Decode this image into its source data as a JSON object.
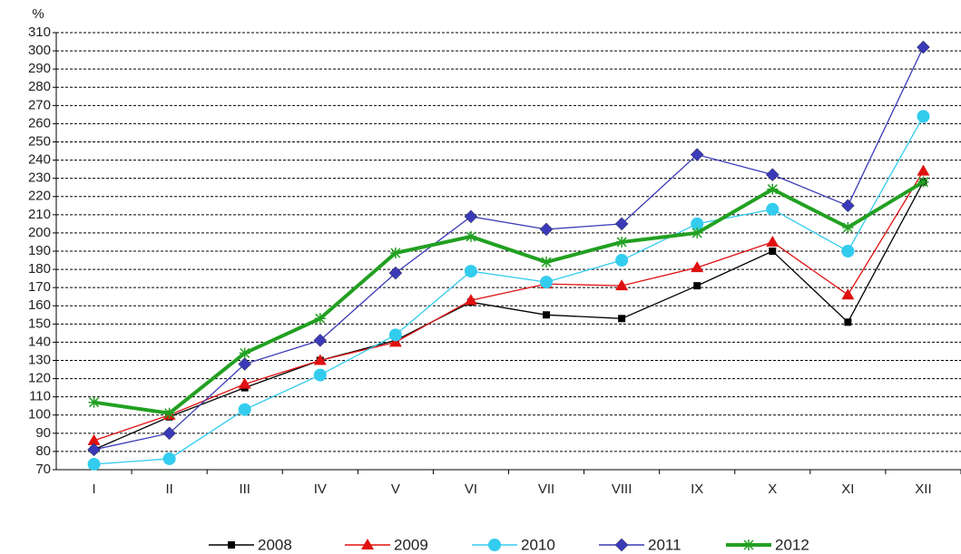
{
  "chart_data": {
    "type": "line",
    "y_label": "%",
    "categories": [
      "I",
      "II",
      "III",
      "IV",
      "V",
      "VI",
      "VII",
      "VIII",
      "IX",
      "X",
      "XI",
      "XII"
    ],
    "series": [
      {
        "name": "2008",
        "color": "#000000",
        "marker": "square",
        "values": [
          81,
          99,
          115,
          130,
          141,
          162,
          155,
          153,
          171,
          190,
          151,
          228
        ]
      },
      {
        "name": "2009",
        "color": "#e01010",
        "marker": "triangle",
        "values": [
          86,
          100,
          117,
          130,
          140,
          163,
          172,
          171,
          181,
          195,
          166,
          234
        ]
      },
      {
        "name": "2010",
        "color": "#33ccee",
        "marker": "circle",
        "values": [
          73,
          76,
          103,
          122,
          144,
          179,
          173,
          185,
          205,
          213,
          190,
          264
        ]
      },
      {
        "name": "2011",
        "color": "#3a3ab8",
        "marker": "diamond",
        "values": [
          81,
          90,
          128,
          141,
          178,
          209,
          202,
          205,
          243,
          232,
          215,
          302
        ]
      },
      {
        "name": "2012",
        "color": "#22a022",
        "marker": "star",
        "values": [
          107,
          101,
          134,
          153,
          189,
          198,
          184,
          195,
          200,
          224,
          203,
          228
        ]
      }
    ],
    "ylim": [
      70,
      310
    ],
    "yticks": [
      70,
      80,
      90,
      100,
      110,
      120,
      130,
      140,
      150,
      160,
      170,
      180,
      190,
      200,
      210,
      220,
      230,
      240,
      250,
      260,
      270,
      280,
      290,
      300,
      310
    ],
    "grid": true,
    "legend": "bottom"
  }
}
